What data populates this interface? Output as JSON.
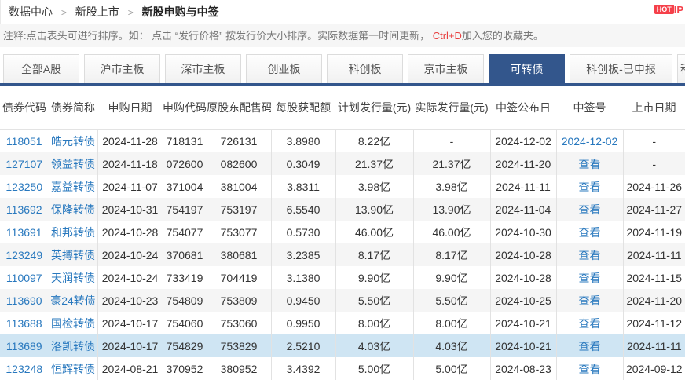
{
  "colors": {
    "accent": "#33568C",
    "link": "#2878BE",
    "hot_badge": "#F5404A",
    "highlight_row": "#CFE5F3",
    "alt_row": "#F5F5F5"
  },
  "breadcrumb": {
    "separator": ">",
    "items": [
      "数据中心",
      "新股上市",
      "新股申购与中签"
    ]
  },
  "hot": {
    "badge": "HOT",
    "suffix": "IP"
  },
  "note": {
    "prefix": "注释:点击表头可进行排序。如： 点击 “发行价格” 按发行价大小排序。实际数据第一时间更新， ",
    "hotkey": "Ctrl+D",
    "suffix": "加入您的收藏夹。"
  },
  "tabs": [
    {
      "label": "全部A股",
      "active": false,
      "style": ""
    },
    {
      "label": "沪市主板",
      "active": false,
      "style": ""
    },
    {
      "label": "深市主板",
      "active": false,
      "style": ""
    },
    {
      "label": "创业板",
      "active": false,
      "style": ""
    },
    {
      "label": "科创板",
      "active": false,
      "style": ""
    },
    {
      "label": "京市主板",
      "active": false,
      "style": ""
    },
    {
      "label": "可转债",
      "active": true,
      "style": ""
    },
    {
      "label": "科创板-已申报",
      "active": false,
      "style": "wide"
    },
    {
      "label": "科",
      "active": false,
      "style": "partial"
    }
  ],
  "table": {
    "columns": [
      "债券代码",
      "债券简称",
      "申购日期",
      "申购代码",
      "原股东配售码",
      "每股获配额",
      "计划发行量(元)",
      "实际发行量(元)",
      "中签公布日",
      "中签号",
      "上市日期"
    ],
    "column_keys": [
      "code",
      "name",
      "apply-date",
      "apply-code",
      "placement-code",
      "per-share",
      "planned-amount",
      "actual-amount",
      "announce-date",
      "lottery",
      "list-date"
    ],
    "rows": [
      {
        "highlighted": false,
        "cells": [
          "118051",
          "皓元转债",
          "2024-11-28",
          "718131",
          "726131",
          "3.8980",
          "8.22亿",
          "-",
          "2024-12-02",
          "2024-12-02",
          "-"
        ]
      },
      {
        "highlighted": false,
        "cells": [
          "127107",
          "领益转债",
          "2024-11-18",
          "072600",
          "082600",
          "0.3049",
          "21.37亿",
          "21.37亿",
          "2024-11-20",
          "查看",
          "-"
        ]
      },
      {
        "highlighted": false,
        "cells": [
          "123250",
          "嘉益转债",
          "2024-11-07",
          "371004",
          "381004",
          "3.8311",
          "3.98亿",
          "3.98亿",
          "2024-11-11",
          "查看",
          "2024-11-26"
        ]
      },
      {
        "highlighted": false,
        "cells": [
          "113692",
          "保隆转债",
          "2024-10-31",
          "754197",
          "753197",
          "6.5540",
          "13.90亿",
          "13.90亿",
          "2024-11-04",
          "查看",
          "2024-11-27"
        ]
      },
      {
        "highlighted": false,
        "cells": [
          "113691",
          "和邦转债",
          "2024-10-28",
          "754077",
          "753077",
          "0.5730",
          "46.00亿",
          "46.00亿",
          "2024-10-30",
          "查看",
          "2024-11-19"
        ]
      },
      {
        "highlighted": false,
        "cells": [
          "123249",
          "英搏转债",
          "2024-10-24",
          "370681",
          "380681",
          "3.2385",
          "8.17亿",
          "8.17亿",
          "2024-10-28",
          "查看",
          "2024-11-11"
        ]
      },
      {
        "highlighted": false,
        "cells": [
          "110097",
          "天润转债",
          "2024-10-24",
          "733419",
          "704419",
          "3.1380",
          "9.90亿",
          "9.90亿",
          "2024-10-28",
          "查看",
          "2024-11-15"
        ]
      },
      {
        "highlighted": false,
        "cells": [
          "113690",
          "豪24转债",
          "2024-10-23",
          "754809",
          "753809",
          "0.9450",
          "5.50亿",
          "5.50亿",
          "2024-10-25",
          "查看",
          "2024-11-20"
        ]
      },
      {
        "highlighted": false,
        "cells": [
          "113688",
          "国检转债",
          "2024-10-17",
          "754060",
          "753060",
          "0.9950",
          "8.00亿",
          "8.00亿",
          "2024-10-21",
          "查看",
          "2024-11-12"
        ]
      },
      {
        "highlighted": true,
        "cells": [
          "113689",
          "洛凯转债",
          "2024-10-17",
          "754829",
          "753829",
          "2.5210",
          "4.03亿",
          "4.03亿",
          "2024-10-21",
          "查看",
          "2024-11-11"
        ]
      },
      {
        "highlighted": false,
        "cells": [
          "123248",
          "恒辉转债",
          "2024-08-21",
          "370952",
          "380952",
          "3.4392",
          "5.00亿",
          "5.00亿",
          "2024-08-23",
          "查看",
          "2024-09-12"
        ]
      }
    ]
  }
}
